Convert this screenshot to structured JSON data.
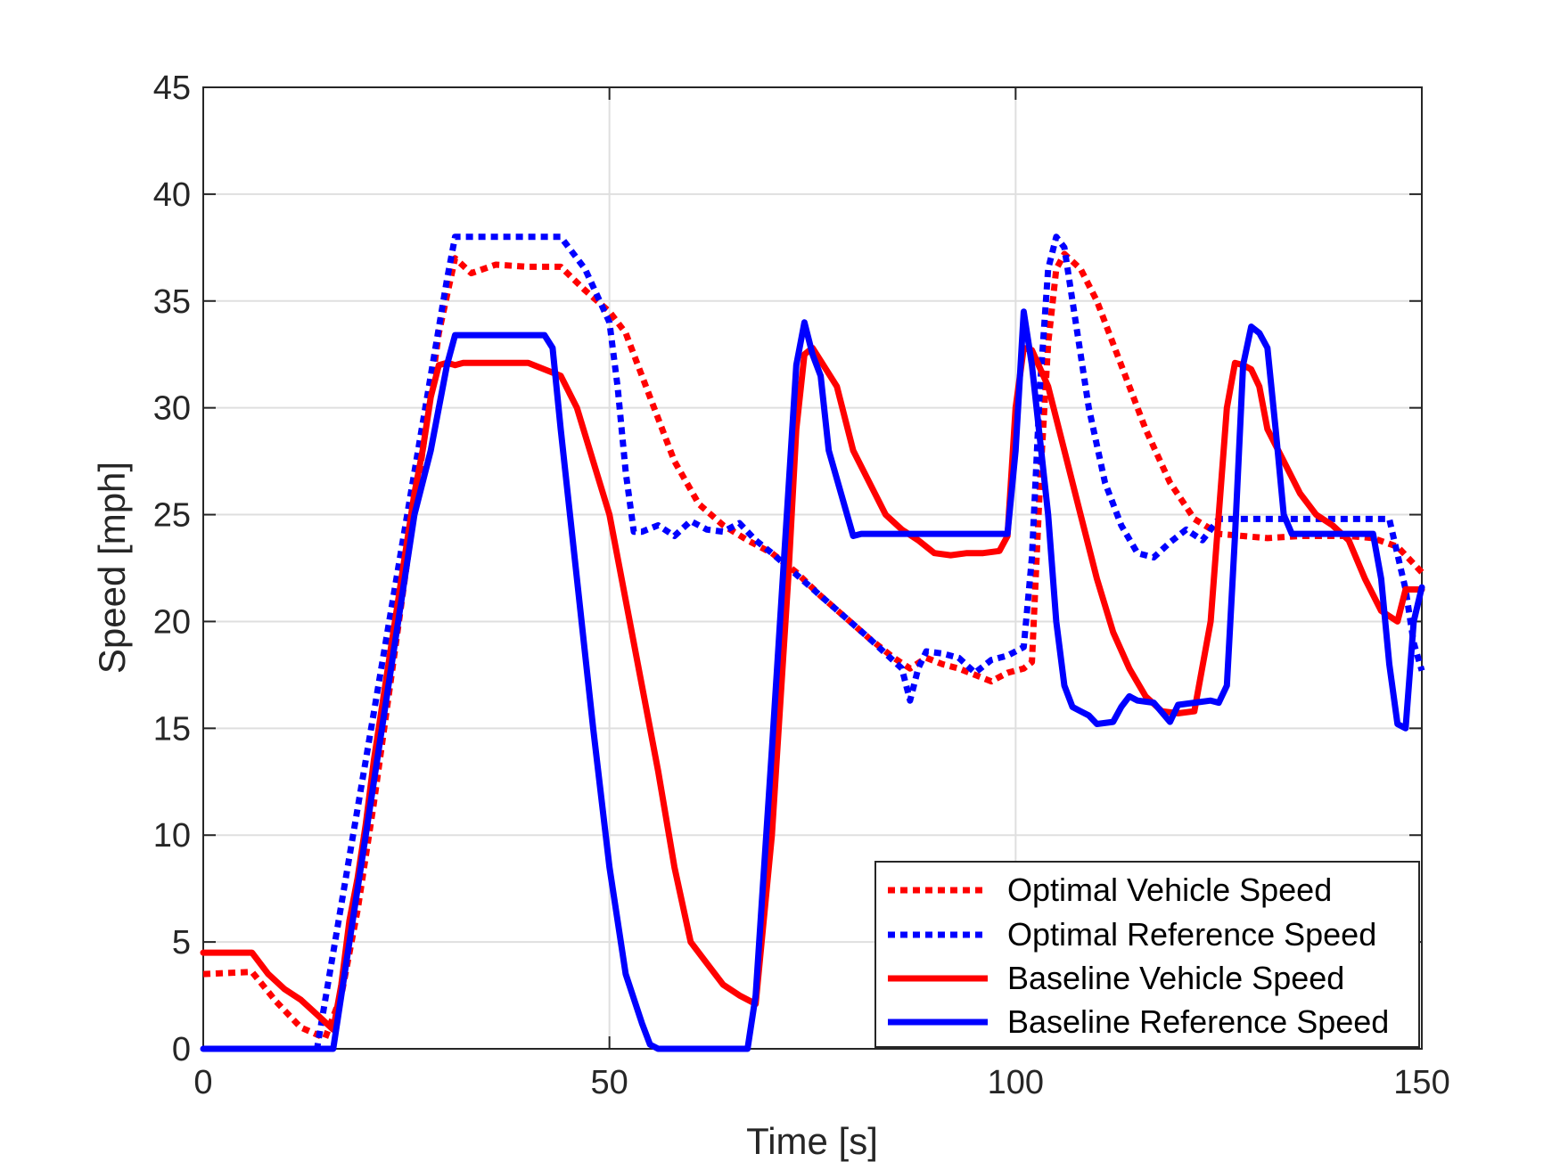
{
  "chart_data": {
    "type": "line",
    "title": "",
    "xlabel": "Time [s]",
    "ylabel": "Speed [mph]",
    "xlim": [
      0,
      150
    ],
    "ylim": [
      0,
      45
    ],
    "xticks": [
      0,
      50,
      100,
      150
    ],
    "yticks": [
      0,
      5,
      10,
      15,
      20,
      25,
      30,
      35,
      40,
      45
    ],
    "grid": true,
    "legend_position": "bottom-right",
    "series": [
      {
        "name": "Optimal Vehicle Speed",
        "color": "#ff0000",
        "style": "dotted",
        "x": [
          0,
          6,
          9,
          12,
          15,
          17,
          19,
          21,
          23,
          25,
          27,
          29,
          31,
          33,
          36,
          40,
          44,
          47,
          50,
          52,
          55,
          58,
          61,
          64,
          67,
          70,
          73,
          76,
          79,
          82,
          85,
          87,
          89,
          91,
          93,
          95,
          97,
          99,
          101,
          102,
          103,
          104,
          105,
          106,
          108,
          110,
          113,
          116,
          119,
          122,
          125,
          128,
          131,
          135,
          138,
          141,
          144,
          147,
          150
        ],
        "y": [
          3.5,
          3.6,
          2.2,
          1.0,
          0.5,
          2.5,
          6.5,
          11.5,
          17,
          22.5,
          28,
          33.5,
          37,
          36.3,
          36.7,
          36.6,
          36.6,
          35.5,
          34.5,
          33.5,
          30.5,
          27.5,
          25.5,
          24.5,
          23.8,
          23.2,
          22.3,
          21.2,
          20.2,
          19.2,
          18.3,
          17.8,
          18.3,
          18.0,
          17.8,
          17.5,
          17.2,
          17.6,
          17.8,
          18.1,
          26.5,
          33,
          36.5,
          37.2,
          36.5,
          35,
          32,
          29,
          26.5,
          24.8,
          24.1,
          24,
          23.9,
          24.0,
          24.0,
          24.0,
          23.9,
          23.5,
          22.3
        ]
      },
      {
        "name": "Optimal Reference Speed",
        "color": "#0000ff",
        "style": "dotted",
        "x": [
          0,
          14,
          16,
          18,
          20,
          22,
          24,
          26,
          28,
          30,
          31,
          32,
          36,
          40,
          44,
          47,
          50,
          51,
          52,
          53,
          54,
          56,
          58,
          60,
          62,
          64,
          66,
          68,
          70,
          73,
          76,
          79,
          82,
          84,
          86,
          87,
          88,
          89,
          91,
          93,
          95,
          97,
          99,
          101,
          102,
          103,
          104,
          105,
          106,
          107,
          109,
          111,
          113,
          115,
          117,
          119,
          121,
          123,
          125,
          127,
          130,
          135,
          140,
          144,
          146,
          148,
          149,
          150
        ],
        "y": [
          0,
          0,
          4.5,
          9,
          13.5,
          18,
          22.5,
          27,
          31.5,
          36,
          38,
          38,
          38,
          38,
          38,
          36.5,
          34,
          31,
          27,
          24.2,
          24.2,
          24.5,
          24,
          24.7,
          24.3,
          24.2,
          24.6,
          23.8,
          23.2,
          22.2,
          21.2,
          20.2,
          19.2,
          18.5,
          17.8,
          16.3,
          17.8,
          18.6,
          18.5,
          18.3,
          17.6,
          18.2,
          18.4,
          18.8,
          23,
          31,
          36.5,
          38,
          37.5,
          35,
          30,
          26.5,
          24.5,
          23.2,
          23.0,
          23.7,
          24.3,
          23.8,
          24.8,
          24.8,
          24.8,
          24.8,
          24.8,
          24.8,
          24.8,
          21.5,
          19.0,
          17.7
        ]
      },
      {
        "name": "Baseline Vehicle Speed",
        "color": "#ff0000",
        "style": "solid",
        "x": [
          0,
          6,
          8,
          10,
          12,
          14,
          16,
          17,
          18,
          19,
          20,
          21,
          22,
          23,
          24,
          25,
          26,
          27,
          28,
          29,
          30,
          31,
          32,
          34,
          36,
          40,
          44,
          46,
          48,
          50,
          52,
          54,
          56,
          58,
          60,
          62,
          64,
          66,
          68,
          70,
          72,
          73,
          74,
          75,
          76,
          78,
          80,
          82,
          84,
          86,
          88,
          90,
          92,
          94,
          96,
          98,
          99,
          100,
          101,
          102,
          104,
          106,
          108,
          110,
          112,
          114,
          116,
          118,
          120,
          122,
          124,
          126,
          127,
          128,
          129,
          130,
          131,
          133,
          135,
          137,
          139,
          141,
          143,
          145,
          147,
          148,
          149,
          150
        ],
        "y": [
          4.5,
          4.5,
          3.5,
          2.8,
          2.3,
          1.6,
          0.9,
          3.0,
          6.0,
          8.0,
          10.5,
          13.5,
          16.0,
          18.5,
          21.0,
          23.5,
          26.0,
          28.0,
          30.5,
          32.0,
          32.1,
          32.0,
          32.1,
          32.1,
          32.1,
          32.1,
          31.5,
          30.0,
          27.5,
          25.0,
          21.0,
          17.0,
          13.0,
          8.5,
          5.0,
          4.0,
          3.0,
          2.5,
          2.1,
          10.0,
          22.0,
          29.0,
          32.5,
          32.8,
          32.2,
          31.0,
          28.0,
          26.5,
          25.0,
          24.3,
          23.8,
          23.2,
          23.1,
          23.2,
          23.2,
          23.3,
          24.0,
          30.0,
          32.8,
          32.7,
          31.0,
          28.0,
          25.0,
          22.0,
          19.5,
          17.8,
          16.5,
          15.8,
          15.7,
          15.8,
          20.0,
          30.0,
          32.1,
          32.0,
          31.8,
          31.0,
          29.0,
          27.5,
          26.0,
          25.0,
          24.5,
          23.8,
          22.0,
          20.5,
          20.0,
          21.5,
          21.5,
          21.5
        ]
      },
      {
        "name": "Baseline Reference Speed",
        "color": "#0000ff",
        "style": "solid",
        "x": [
          0,
          16,
          18,
          20,
          22,
          24,
          26,
          28,
          30,
          31,
          32,
          34,
          38,
          42,
          43,
          44,
          46,
          48,
          50,
          52,
          54,
          55,
          56,
          57,
          60,
          64,
          67,
          68,
          70,
          72,
          73,
          74,
          75,
          76,
          77,
          80,
          81,
          82,
          85,
          90,
          95,
          99,
          100,
          101,
          102,
          104,
          105,
          106,
          107,
          108,
          109,
          110,
          112,
          113,
          114,
          115,
          117,
          119,
          120,
          122,
          124,
          125,
          126,
          127,
          128,
          129,
          130,
          131,
          132,
          133,
          134,
          135,
          136,
          140,
          144,
          145,
          146,
          147,
          148,
          149,
          150
        ],
        "y": [
          0,
          0,
          5,
          10,
          15,
          20,
          25,
          28,
          32,
          33.4,
          33.4,
          33.4,
          33.4,
          33.4,
          32.8,
          29.0,
          22.0,
          15.0,
          8.5,
          3.5,
          1.2,
          0.2,
          0.0,
          0.0,
          0.0,
          0.0,
          0.0,
          2.5,
          14,
          26.0,
          32.0,
          34.0,
          32.5,
          31.5,
          28.0,
          24.0,
          24.1,
          24.1,
          24.1,
          24.1,
          24.1,
          24.1,
          28.0,
          34.5,
          32.0,
          25.0,
          20.0,
          17.0,
          16.0,
          15.8,
          15.6,
          15.2,
          15.3,
          16.0,
          16.5,
          16.3,
          16.2,
          15.3,
          16.1,
          16.2,
          16.3,
          16.2,
          17.0,
          24.0,
          32.0,
          33.8,
          33.5,
          32.8,
          29.0,
          25.0,
          24.1,
          24.1,
          24.1,
          24.1,
          24.1,
          22.0,
          18.0,
          15.2,
          15.0,
          20.0,
          21.6
        ]
      }
    ]
  }
}
